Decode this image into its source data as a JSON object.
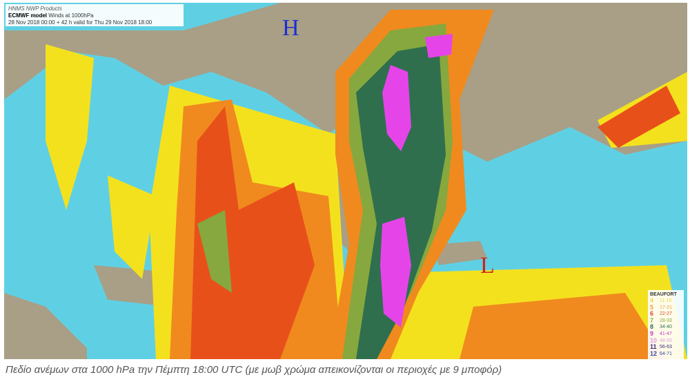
{
  "header": {
    "line1": "HNMS NWP Products",
    "model": "ECMWF model",
    "subtitle": "Winds at 1000hPa",
    "validity": "28 Nov 2018 00:00 + 42 h valid for Thu 29 Nov 2018 18:00"
  },
  "pressure_centers": {
    "high": "H",
    "low": "L"
  },
  "colors": {
    "land": "#a89f86",
    "sea": "#5fd0e4",
    "yellow": "#f4e11e",
    "orange": "#f08a1e",
    "red": "#e8501a",
    "green": "#86a83e",
    "darkgreen": "#2f6f4e",
    "magenta": "#e545e8"
  },
  "legend": {
    "title": "BEAUFORT",
    "items": [
      {
        "bf": "4",
        "range": "11-16",
        "color": "#e8d84a"
      },
      {
        "bf": "5",
        "range": "17-21",
        "color": "#e8a04a"
      },
      {
        "bf": "6",
        "range": "22-27",
        "color": "#d84a2a"
      },
      {
        "bf": "7",
        "range": "28-33",
        "color": "#86a83e"
      },
      {
        "bf": "8",
        "range": "34-40",
        "color": "#2f6f4e"
      },
      {
        "bf": "9",
        "range": "41-47",
        "color": "#c040c0"
      },
      {
        "bf": "10",
        "range": "48-55",
        "color": "#d8a0e0"
      },
      {
        "bf": "11",
        "range": "56-63",
        "color": "#3a2a7a"
      },
      {
        "bf": "12",
        "range": "64-71",
        "color": "#3a4aa0"
      }
    ]
  },
  "caption": "Πεδίο ανέμων στα 1000 hPa την Πέμπτη 18:00 UTC (με μωβ χρώμα απεικονίζονται οι περιοχές με 9 μποφόρ)"
}
